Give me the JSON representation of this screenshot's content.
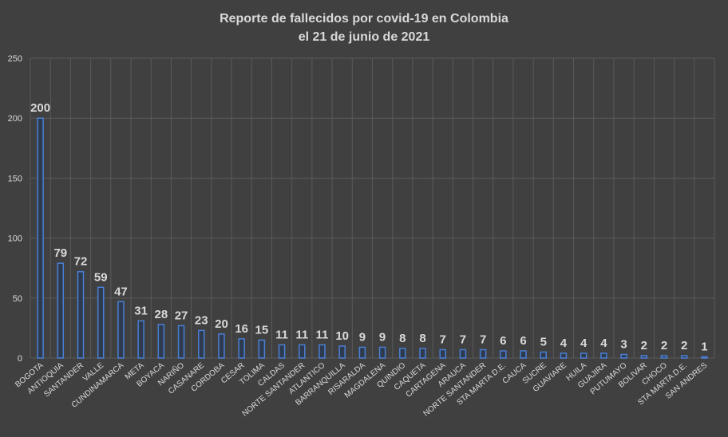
{
  "chart_data": {
    "type": "bar",
    "title": "Reporte de fallecidos por covid-19 en Colombia",
    "subtitle": "el 21 de junio de 2021",
    "categories": [
      "BOGOTA",
      "ANTIOQUIA",
      "SANTANDER",
      "VALLE",
      "CUNDINAMARCA",
      "META",
      "BOYACA",
      "NARIÑO",
      "CASANARE",
      "CORDOBA",
      "CESAR",
      "TOLIMA",
      "CALDAS",
      "NORTE SANTANDER",
      "ATLANTICO",
      "BARRANQUILLA",
      "RISARALDA",
      "MAGDALENA",
      "QUINDIO",
      "CAQUETA",
      "CARTAGENA",
      "ARAUCA",
      "NORTE SANTANDER",
      "STA MARTA D.E.",
      "CAUCA",
      "SUCRE",
      "GUAVIARE",
      "HUILA",
      "GUAJIRA",
      "PUTUMAYO",
      "BOLIVAR",
      "CHOCO",
      "STA MARTA D.E.",
      "SAN ANDRES"
    ],
    "values": [
      200,
      79,
      72,
      59,
      47,
      31,
      28,
      27,
      23,
      20,
      16,
      15,
      11,
      11,
      11,
      10,
      9,
      9,
      8,
      8,
      7,
      7,
      7,
      6,
      6,
      5,
      4,
      4,
      4,
      3,
      2,
      2,
      2,
      1
    ],
    "color": "#4a7fd4",
    "ylim": [
      0,
      250
    ],
    "yticks": [
      0,
      50,
      100,
      150,
      200,
      250
    ],
    "grid": true
  }
}
